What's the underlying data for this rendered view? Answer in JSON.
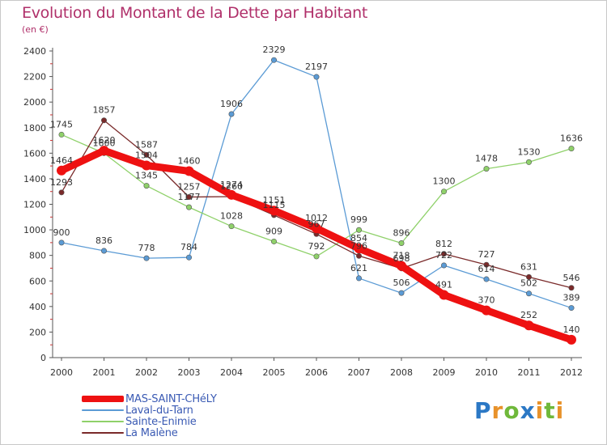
{
  "title": "Evolution du Montant de la Dette par Habitant",
  "subtitle": "(en €)",
  "logo": {
    "text": "Proxiti",
    "letters": [
      {
        "ch": "P",
        "color": "#2b78c5"
      },
      {
        "ch": "r",
        "color": "#e8922a"
      },
      {
        "ch": "o",
        "color": "#6fb83a"
      },
      {
        "ch": "x",
        "color": "#2b78c5"
      },
      {
        "ch": "i",
        "color": "#e8922a"
      },
      {
        "ch": "t",
        "color": "#6fb83a"
      },
      {
        "ch": "i",
        "color": "#e8922a"
      }
    ]
  },
  "chart_data": {
    "type": "line",
    "title": "Evolution du Montant de la Dette par Habitant",
    "subtitle": "(en €)",
    "x": [
      "2000",
      "2001",
      "2002",
      "2003",
      "2004",
      "2005",
      "2006",
      "2007",
      "2008",
      "2009",
      "2010",
      "2011",
      "2012"
    ],
    "ylim": [
      0,
      2400
    ],
    "yticks": [
      "0",
      "200",
      "400",
      "600",
      "800",
      "1000",
      "1200",
      "1400",
      "1600",
      "1800",
      "2000",
      "2200",
      "2400"
    ],
    "grid": false,
    "legend_position": "bottom-left",
    "series": [
      {
        "name": "MAS-SAINT-CHéLY",
        "color": "#ee1111",
        "values": [
          1464,
          1620,
          1504,
          1460,
          1274,
          1151,
          1012,
          854,
          718,
          491,
          370,
          252,
          140
        ],
        "labels": [
          "1464",
          "1620",
          "1504",
          "1460",
          "1274",
          "1151",
          "1012",
          "854",
          "718",
          "491",
          "370",
          "252",
          "140"
        ]
      },
      {
        "name": "Laval-du-Tarn",
        "color": "#5b9bd5",
        "values": [
          900,
          836,
          778,
          784,
          1906,
          2329,
          2197,
          621,
          506,
          722,
          614,
          502,
          389
        ],
        "labels": [
          "900",
          "836",
          "778",
          "784",
          "1906",
          "2329",
          "2197",
          "621",
          "506",
          "722",
          "614",
          "502",
          "389"
        ]
      },
      {
        "name": "Sainte-Enimie",
        "color": "#8fd16a",
        "values": [
          1745,
          1600,
          1345,
          1177,
          1028,
          909,
          792,
          999,
          896,
          1300,
          1478,
          1530,
          1636
        ],
        "labels": [
          "1745",
          "1600",
          "1345",
          "1177",
          "1028",
          "909",
          "792",
          "999",
          "896",
          "1300",
          "1478",
          "1530",
          "1636"
        ]
      },
      {
        "name": "La Malène",
        "color": "#7a2a2a",
        "values": [
          1293,
          1857,
          1587,
          1257,
          1260,
          1115,
          967,
          796,
          698,
          812,
          727,
          631,
          546
        ],
        "labels": [
          "1293",
          "1857",
          "1587",
          "1257",
          "1260",
          "1115",
          "967",
          "796",
          "698",
          "812",
          "727",
          "631",
          "546"
        ]
      }
    ]
  }
}
